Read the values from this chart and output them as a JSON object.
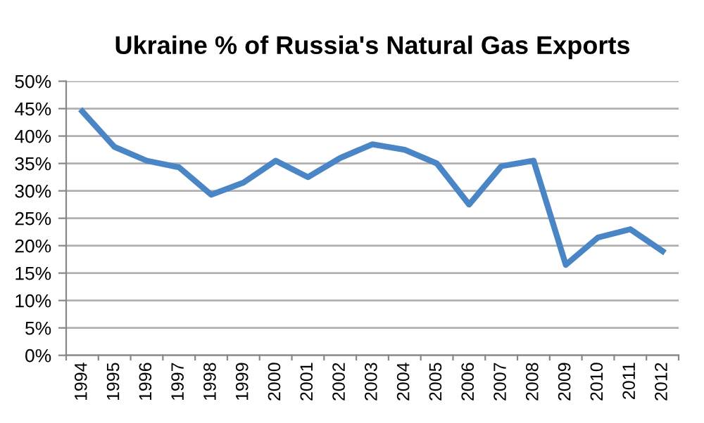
{
  "chart_data": {
    "type": "line",
    "title": "Ukraine % of Russia's Natural Gas Exports",
    "categories": [
      "1994",
      "1995",
      "1996",
      "1997",
      "1998",
      "1999",
      "2000",
      "2001",
      "2002",
      "2003",
      "2004",
      "2005",
      "2006",
      "2007",
      "2008",
      "2009",
      "2010",
      "2011",
      "2012"
    ],
    "series": [
      {
        "color": "#4a86c5",
        "values": [
          44.5,
          38,
          35.5,
          34.3,
          29.3,
          31.5,
          35.5,
          32.5,
          36,
          38.5,
          37.5,
          35,
          27.5,
          34.5,
          35.5,
          16.5,
          21.5,
          23,
          19
        ]
      }
    ],
    "ylim": [
      0,
      50
    ],
    "yticks": [
      {
        "value": 0,
        "label": "0%"
      },
      {
        "value": 5,
        "label": "5%"
      },
      {
        "value": 10,
        "label": "10%"
      },
      {
        "value": 15,
        "label": "15%"
      },
      {
        "value": 20,
        "label": "20%"
      },
      {
        "value": 25,
        "label": "25%"
      },
      {
        "value": 30,
        "label": "30%"
      },
      {
        "value": 35,
        "label": "35%"
      },
      {
        "value": 40,
        "label": "40%"
      },
      {
        "value": 45,
        "label": "45%"
      },
      {
        "value": 50,
        "label": "50%"
      }
    ],
    "grid": "y",
    "marker": "none",
    "line_style": "solid"
  }
}
